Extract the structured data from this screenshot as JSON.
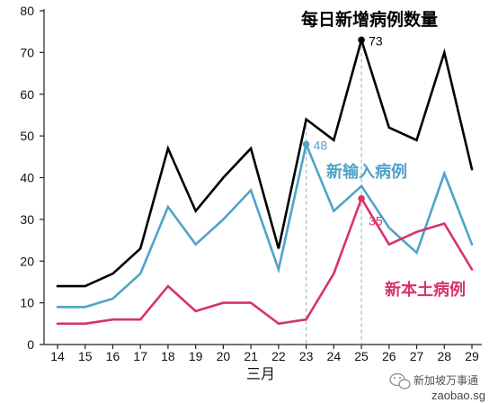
{
  "chart_data": {
    "type": "line",
    "title": "每日新增病例数量",
    "xlabel": "三月",
    "ylabel": "",
    "ylim": [
      0,
      80
    ],
    "yticks": [
      0,
      10,
      20,
      30,
      40,
      50,
      60,
      70,
      80
    ],
    "categories": [
      "14",
      "15",
      "16",
      "17",
      "18",
      "19",
      "20",
      "21",
      "22",
      "23",
      "24",
      "25",
      "26",
      "27",
      "28",
      "29"
    ],
    "series": [
      {
        "name": "",
        "color": "#000000",
        "values": [
          14,
          14,
          17,
          23,
          47,
          32,
          40,
          47,
          23,
          54,
          49,
          73,
          52,
          49,
          70,
          42
        ]
      },
      {
        "name": "新输入病例",
        "color": "#4fa3c9",
        "values": [
          9,
          9,
          11,
          17,
          33,
          24,
          30,
          37,
          18,
          48,
          32,
          38,
          28,
          22,
          41,
          24
        ]
      },
      {
        "name": "新本土病例",
        "color": "#d6336c",
        "values": [
          5,
          5,
          6,
          6,
          14,
          8,
          10,
          10,
          5,
          6,
          17,
          35,
          24,
          27,
          29,
          18
        ]
      }
    ],
    "data_labels": [
      {
        "series": 0,
        "index": 11,
        "text": "73"
      },
      {
        "series": 1,
        "index": 9,
        "text": "48"
      },
      {
        "series": 2,
        "index": 11,
        "text": "35"
      }
    ],
    "highlight_dates": [
      "23",
      "25"
    ],
    "grid": false,
    "legend": "inline labels"
  },
  "watermark": {
    "icon": "wechat-icon",
    "account": "新加坡万事通",
    "url": "zaobao.sg"
  }
}
